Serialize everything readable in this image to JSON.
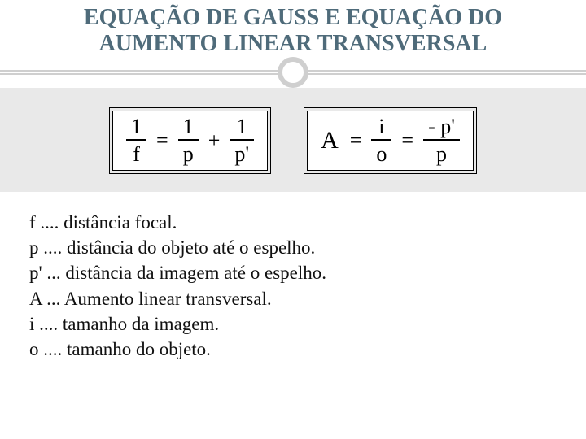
{
  "colors": {
    "title": "#4f6b7a",
    "rule": "#cfcfcf",
    "band_bg": "#e9e9e9",
    "text": "#111111",
    "box_bg": "#ffffff",
    "box_border": "#000000"
  },
  "typography": {
    "title_fontsize": 28,
    "equation_fontsize": 26,
    "defs_fontsize": 23,
    "family": "Georgia, Times New Roman, serif"
  },
  "title": {
    "line1": "EQUAÇÃO DE GAUSS E EQUAÇÃO DO",
    "line2": "AUMENTO LINEAR TRANSVERSAL"
  },
  "equations": {
    "gauss": {
      "f1": {
        "num": "1",
        "den": "f"
      },
      "eq1": "=",
      "f2": {
        "num": "1",
        "den": "p"
      },
      "plus": "+",
      "f3": {
        "num": "1",
        "den": "p'"
      }
    },
    "aumento": {
      "A": "A",
      "eq1": "=",
      "f1": {
        "num": "i",
        "den": "o"
      },
      "eq2": "=",
      "f2": {
        "num": "- p'",
        "den": "p"
      }
    }
  },
  "definitions": [
    "f .... distância focal.",
    "p .... distância do objeto até o espelho.",
    "p' ... distância da imagem até o espelho.",
    "A ... Aumento linear transversal.",
    "i .... tamanho da imagem.",
    "o .... tamanho do objeto."
  ]
}
